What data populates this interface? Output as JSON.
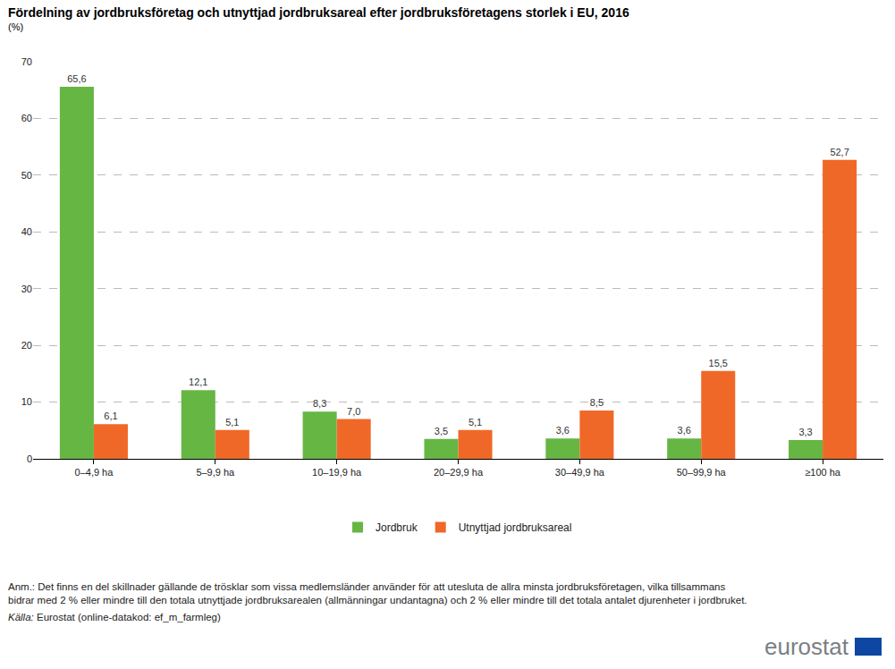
{
  "chart_data": {
    "type": "bar",
    "title": "Fördelning av jordbruksföretag och utnyttjad jordbruksareal efter jordbruksföretagens storlek i EU, 2016",
    "subtitle": "(%)",
    "categories": [
      "0–4,9 ha",
      "5–9,9 ha",
      "10–19,9 ha",
      "20–29,9 ha",
      "30–49,9 ha",
      "50–99,9 ha",
      "≥100 ha"
    ],
    "series": [
      {
        "name": "Jordbruk",
        "color": "#66b644",
        "values": [
          65.6,
          12.1,
          8.3,
          3.5,
          3.6,
          3.6,
          3.3
        ],
        "value_labels": [
          "65,6",
          "12,1",
          "8,3",
          "3,5",
          "3,6",
          "3,6",
          "3,3"
        ]
      },
      {
        "name": "Utnyttjad jordbruksareal",
        "color": "#f06828",
        "values": [
          6.1,
          5.1,
          7.0,
          5.1,
          8.5,
          15.5,
          52.7
        ],
        "value_labels": [
          "6,1",
          "5,1",
          "7,0",
          "5,1",
          "8,5",
          "15,5",
          "52,7"
        ]
      }
    ],
    "ylim": [
      0,
      70
    ],
    "yticks": [
      0,
      10,
      20,
      30,
      40,
      50,
      60,
      70
    ],
    "grid": true,
    "data_labels": true,
    "legend": "bottom",
    "note": [
      "Anm.: Det finns en del skillnader gällande de trösklar som vissa medlemsländer använder för att utesluta de allra minsta jordbruksföretagen, vilka tillsammans",
      "bidrar med 2 % eller mindre till den totala utnyttjade jordbruksarealen (allmänningar undantagna) och 2 % eller mindre till det totala antalet djurenheter i jordbruket."
    ],
    "source_label": "Källa:",
    "source": "Eurostat (online-datakod: ef_m_farmleg)",
    "logo": "eurostat"
  }
}
